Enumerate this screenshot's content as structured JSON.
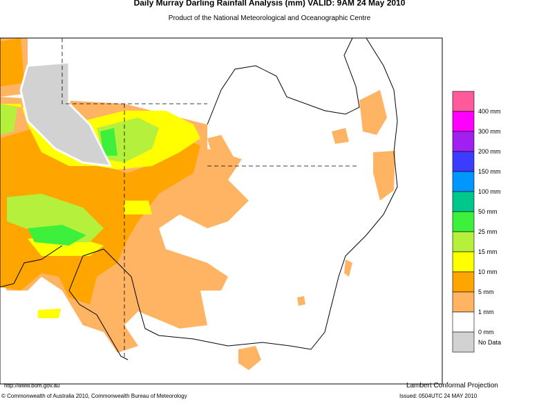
{
  "header": {
    "title": "Daily Murray Darling Rainfall Analysis (mm)  VALID: 9AM 24 May 2010",
    "subtitle": "Product of the National Meteorological and Oceanographic Centre"
  },
  "legend": {
    "colors": [
      "#ff5a9c",
      "#ff00ff",
      "#a020f0",
      "#3c3cff",
      "#0096ff",
      "#00c88c",
      "#3cf03c",
      "#b4f03c",
      "#ffff00",
      "#ffa500",
      "#ffb464",
      "#ffffff",
      "#d2d2d2"
    ],
    "labels": [
      "400 mm",
      "300 mm",
      "200 mm",
      "150 mm",
      "100 mm",
      "50 mm",
      "25 mm",
      "15 mm",
      "10 mm",
      "5 mm",
      "1 mm",
      "0 mm",
      "No Data"
    ]
  },
  "footer": {
    "url": "http://www.bom.gov.au",
    "projection": "Lambert Conformal Projection",
    "copyright": "© Commonwealth of Australia 2010, Commonwealth Bureau of Meteorology",
    "issued": "Issued: 0504UTC 24 MAY 2010"
  }
}
